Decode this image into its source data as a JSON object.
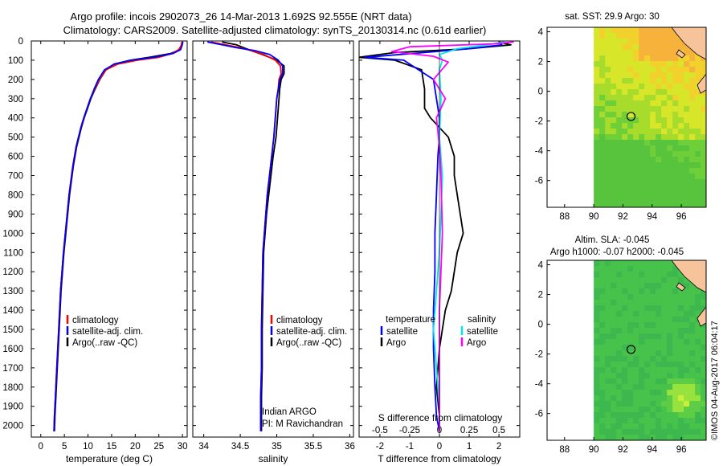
{
  "header": {
    "title_line1": "Argo profile: incois 2902073_26 14-Mar-2013 1.692S 92.555E (NRT data)",
    "title_line2": "Climatology: CARS2009. Satellite-adjusted climatology: synTS_20130314.nc (0.61d earlier)"
  },
  "footer": {
    "stamp": "©IMOS 04-Aug-2017 06:04:17"
  },
  "colors": {
    "climatology": "#ff0000",
    "satellite": "#0000ff",
    "argo": "#000000",
    "s_satellite": "#00e5ee",
    "s_argo": "#ff00ff",
    "land": "#f7c39a"
  },
  "chart_data": [
    {
      "type": "line",
      "name": "temperature",
      "xlabel": "temperature (deg C)",
      "xlim": [
        -2,
        31
      ],
      "ylim": [
        2060,
        0
      ],
      "xticks": [
        0,
        5,
        10,
        15,
        20,
        25,
        30
      ],
      "yticks": [
        0,
        100,
        200,
        300,
        400,
        500,
        600,
        700,
        800,
        900,
        1000,
        1100,
        1200,
        1300,
        1400,
        1500,
        1600,
        1700,
        1800,
        1900,
        2000
      ],
      "legend": {
        "climatology": "climatology",
        "satellite": "satellite-adj. clim.",
        "argo": "Argo(..raw -QC)"
      },
      "series": [
        {
          "name": "Argo",
          "color": "#000000",
          "x": [
            30.0,
            29.8,
            29.5,
            27.5,
            23.0,
            19.0,
            15.5,
            13.8,
            12.5,
            11.5,
            10.6,
            9.9,
            9.2,
            8.6,
            7.6,
            6.9,
            6.1,
            5.5,
            4.9,
            4.3,
            3.9,
            3.5,
            3.2,
            3.0,
            2.9
          ],
          "y": [
            5,
            25,
            45,
            65,
            85,
            100,
            120,
            150,
            200,
            250,
            300,
            350,
            400,
            450,
            550,
            650,
            800,
            950,
            1100,
            1300,
            1500,
            1700,
            1850,
            1950,
            2030
          ]
        },
        {
          "name": "climatology",
          "color": "#ff0000",
          "x": [
            29.9,
            29.7,
            29.2,
            27.8,
            25.0,
            20.5,
            16.3,
            13.8,
            12.4,
            11.4,
            10.5,
            9.8,
            9.1,
            8.5,
            7.5,
            6.8,
            6.0,
            5.4,
            4.8,
            4.2,
            3.8,
            3.4,
            3.1,
            2.9,
            2.8
          ],
          "y": [
            5,
            25,
            45,
            65,
            85,
            100,
            120,
            150,
            200,
            250,
            300,
            350,
            400,
            450,
            550,
            650,
            800,
            950,
            1100,
            1300,
            1500,
            1700,
            1850,
            1950,
            2030
          ]
        },
        {
          "name": "satellite-adj. clim.",
          "color": "#0000ff",
          "x": [
            30.1,
            29.9,
            29.6,
            28.0,
            24.0,
            19.3,
            15.6,
            13.5,
            12.2,
            11.3,
            10.5,
            9.8,
            9.1,
            8.5,
            7.5,
            6.8,
            6.0,
            5.4,
            4.8,
            4.2,
            3.8,
            3.4,
            3.1,
            2.9,
            2.8
          ],
          "y": [
            5,
            25,
            45,
            65,
            85,
            100,
            120,
            150,
            200,
            250,
            300,
            350,
            400,
            450,
            550,
            650,
            800,
            950,
            1100,
            1300,
            1500,
            1700,
            1850,
            1950,
            2030
          ]
        }
      ]
    },
    {
      "type": "line",
      "name": "salinity",
      "xlabel": "salinity",
      "xlim": [
        33.85,
        36.05
      ],
      "ylim": [
        2060,
        0
      ],
      "xticks": [
        34,
        34.5,
        35,
        35.5,
        36
      ],
      "legend": {
        "climatology": "climatology",
        "satellite": "satellite-adj. clim.",
        "argo": "Argo(..raw -QC)"
      },
      "annotation": [
        "Indian ARGO",
        "PI: M Ravichandran"
      ],
      "series": [
        {
          "name": "Argo",
          "color": "#000000",
          "x": [
            34.25,
            34.45,
            34.55,
            34.65,
            34.8,
            35.0,
            35.1,
            35.1,
            35.06,
            35.04,
            35.03,
            35.01,
            34.99,
            34.95,
            34.92,
            34.89,
            34.86,
            34.84,
            34.82,
            34.81,
            34.8,
            34.8,
            34.79,
            34.79,
            34.79
          ],
          "y": [
            5,
            20,
            35,
            50,
            70,
            100,
            130,
            170,
            200,
            250,
            300,
            400,
            500,
            600,
            700,
            800,
            900,
            1000,
            1100,
            1300,
            1500,
            1700,
            1850,
            1950,
            2030
          ]
        },
        {
          "name": "climatology",
          "color": "#ff0000",
          "x": [
            34.1,
            34.3,
            34.5,
            34.65,
            34.82,
            34.98,
            35.05,
            35.06,
            35.03,
            35.02,
            35.0,
            34.98,
            34.96,
            34.93,
            34.9,
            34.87,
            34.85,
            34.83,
            34.81,
            34.8,
            34.79,
            34.79,
            34.78,
            34.78,
            34.78
          ],
          "y": [
            5,
            20,
            35,
            50,
            70,
            100,
            130,
            170,
            200,
            250,
            300,
            400,
            500,
            600,
            700,
            800,
            900,
            1000,
            1100,
            1300,
            1500,
            1700,
            1850,
            1950,
            2030
          ]
        },
        {
          "name": "satellite-adj. clim.",
          "color": "#0000ff",
          "x": [
            34.05,
            34.25,
            34.45,
            34.7,
            34.9,
            35.02,
            35.08,
            35.08,
            35.04,
            35.02,
            35.0,
            34.98,
            34.96,
            34.93,
            34.9,
            34.87,
            34.85,
            34.83,
            34.81,
            34.8,
            34.79,
            34.79,
            34.78,
            34.78,
            34.78
          ],
          "y": [
            5,
            20,
            35,
            50,
            70,
            100,
            130,
            170,
            200,
            250,
            300,
            400,
            500,
            600,
            700,
            800,
            900,
            1000,
            1100,
            1300,
            1500,
            1700,
            1850,
            1950,
            2030
          ]
        }
      ]
    },
    {
      "type": "line",
      "name": "difference",
      "xlabel": "T difference from climatology",
      "top_label": "S difference from climatology",
      "xlim": [
        -2.7,
        2.7
      ],
      "ylim": [
        2060,
        0
      ],
      "xticks_t": [
        -2,
        -1,
        0,
        1,
        2
      ],
      "xticks_s": [
        "-0.5",
        "-0.25",
        "0",
        "0.25",
        "0.5"
      ],
      "legend": {
        "temperature_title": "temperature",
        "salinity_title": "salinity",
        "satellite": "satellite",
        "argo": "Argo"
      },
      "series": [
        {
          "name": "T Argo",
          "color": "#000000",
          "x": [
            2.0,
            2.4,
            1.0,
            -1.5,
            -2.7,
            -1.5,
            -0.6,
            -0.5,
            -0.5,
            -0.3,
            0.0,
            0.3,
            0.5,
            0.5,
            0.6,
            0.7,
            0.8,
            0.6,
            0.5,
            0.4,
            0.2,
            0.0,
            -0.1,
            0.0,
            0.0
          ],
          "y": [
            5,
            20,
            40,
            60,
            85,
            100,
            150,
            250,
            350,
            400,
            450,
            500,
            600,
            700,
            800,
            900,
            1000,
            1100,
            1200,
            1300,
            1400,
            1600,
            1800,
            1950,
            2030
          ]
        },
        {
          "name": "T satellite",
          "color": "#0000ff",
          "x": [
            2.0,
            2.1,
            1.0,
            -0.5,
            -2.5,
            -1.2,
            -0.2,
            -0.1,
            0.0,
            0.0,
            -0.05,
            -0.1,
            -0.15,
            -0.15,
            -0.2,
            -0.2,
            -0.15,
            -0.1,
            0.0
          ],
          "y": [
            5,
            20,
            40,
            60,
            85,
            100,
            200,
            300,
            400,
            500,
            600,
            800,
            1000,
            1200,
            1400,
            1600,
            1800,
            1950,
            2030
          ]
        },
        {
          "name": "S satellite",
          "color": "#00e5ee",
          "x": [
            2.2,
            1.6,
            0.6,
            0.0,
            0.1,
            0.0,
            0.05,
            0.0,
            0.1,
            0.05,
            0.0,
            -0.1,
            -0.2,
            -0.1,
            0.0,
            0.0
          ],
          "y": [
            5,
            20,
            40,
            70,
            100,
            150,
            300,
            500,
            700,
            900,
            1100,
            1300,
            1500,
            1700,
            1900,
            2030
          ]
        },
        {
          "name": "S Argo",
          "color": "#ff00ff",
          "x": [
            2.5,
            1.8,
            -1.0,
            -1.6,
            -0.2,
            0.3,
            -0.2,
            0.2,
            -0.1,
            0.0,
            0.05,
            0.1,
            0.0,
            0.0,
            0.0
          ],
          "y": [
            5,
            15,
            30,
            55,
            80,
            110,
            200,
            300,
            400,
            550,
            700,
            1000,
            1400,
            1800,
            2030
          ]
        }
      ]
    },
    {
      "type": "heatmap",
      "name": "sst-map",
      "title": "sat. SST: 29.9 Argo: 30",
      "xticks": [
        88,
        90,
        92,
        94,
        96
      ],
      "yticks": [
        4,
        2,
        0,
        -2,
        -4,
        -6
      ],
      "xlim": [
        86.8,
        97.7
      ],
      "ylim": [
        -7.8,
        4.3
      ],
      "argo_position": [
        92.555,
        -1.692
      ],
      "data_xmin": 90
    },
    {
      "type": "heatmap",
      "name": "sla-map",
      "title_line1": "Altim. SLA: -0.045",
      "title_line2": "Argo h1000: -0.07 h2000: -0.045",
      "xticks": [
        88,
        90,
        92,
        94,
        96
      ],
      "yticks": [
        4,
        2,
        0,
        -2,
        -4,
        -6
      ],
      "xlim": [
        86.8,
        97.7
      ],
      "ylim": [
        -7.8,
        4.3
      ],
      "argo_position": [
        92.555,
        -1.692
      ],
      "data_xmin": 90
    }
  ]
}
